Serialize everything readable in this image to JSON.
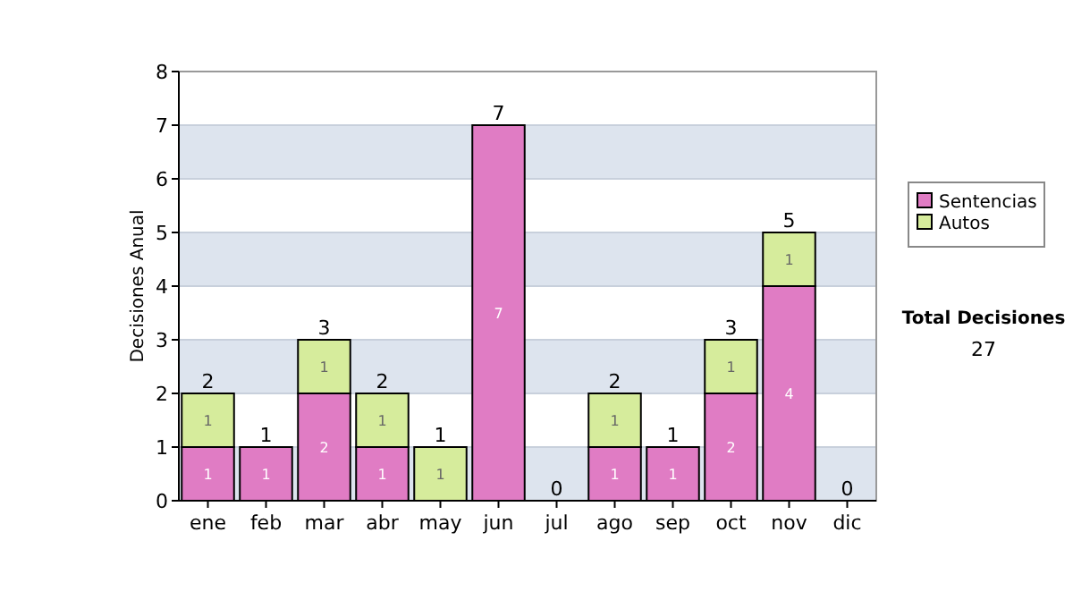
{
  "chart_data": {
    "type": "bar",
    "stacked": true,
    "ylabel": "Decisiones Anual",
    "categories": [
      "ene",
      "feb",
      "mar",
      "abr",
      "may",
      "jun",
      "jul",
      "ago",
      "sep",
      "oct",
      "nov",
      "dic"
    ],
    "series": [
      {
        "name": "Sentencias",
        "color": "#e07cc4",
        "values": [
          1,
          1,
          2,
          1,
          0,
          7,
          0,
          1,
          1,
          2,
          4,
          0
        ],
        "value_labels": [
          "1",
          "1",
          "2",
          "1",
          null,
          "7",
          null,
          "1",
          "1",
          "2",
          "4",
          null
        ]
      },
      {
        "name": "Autos",
        "color": "#d6ec9c",
        "values": [
          1,
          0,
          1,
          1,
          1,
          0,
          0,
          1,
          0,
          1,
          1,
          0
        ],
        "value_labels": [
          "1",
          null,
          "1",
          "1",
          "1",
          null,
          null,
          "1",
          null,
          "1",
          "1",
          null
        ]
      }
    ],
    "totals": [
      "2",
      "1",
      "3",
      "2",
      "1",
      "7",
      "0",
      "2",
      "1",
      "3",
      "5",
      "0"
    ],
    "ylim": [
      0,
      8
    ],
    "yticks": [
      0,
      1,
      2,
      3,
      4,
      5,
      6,
      7,
      8
    ],
    "grid": "y",
    "legend": "right",
    "annotations": [
      "Total Decisiones",
      "27"
    ]
  }
}
